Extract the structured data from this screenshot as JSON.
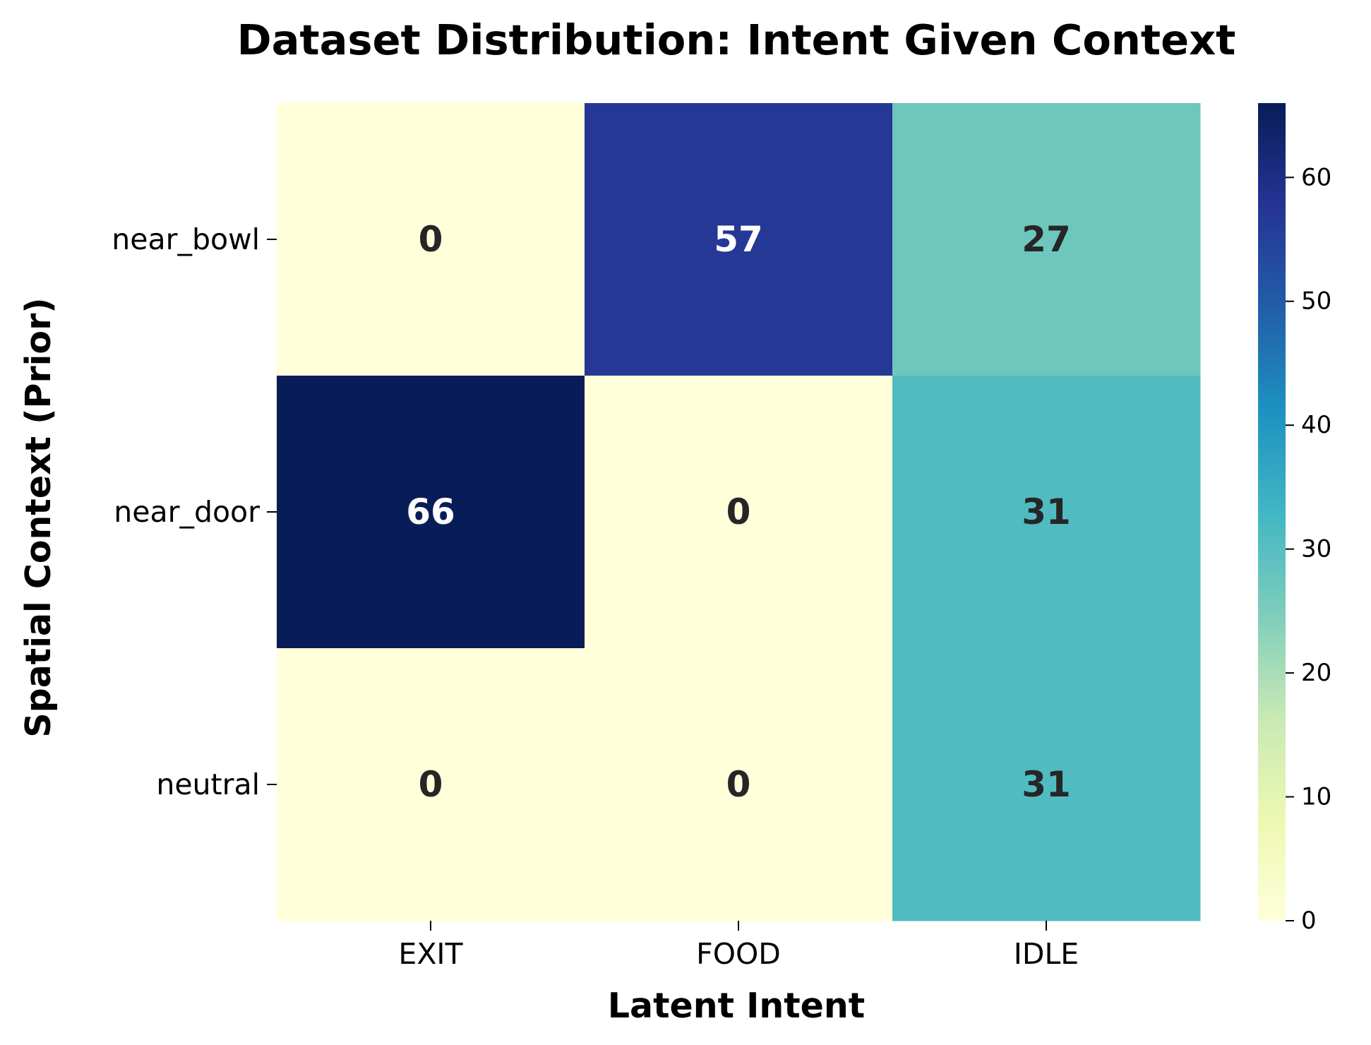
{
  "chart_data": {
    "type": "heatmap",
    "title": "Dataset Distribution: Intent Given Context",
    "xlabel": "Latent Intent",
    "ylabel": "Spatial Context (Prior)",
    "x_categories": [
      "EXIT",
      "FOOD",
      "IDLE"
    ],
    "y_categories": [
      "near_bowl",
      "near_door",
      "neutral"
    ],
    "values": [
      [
        0,
        57,
        27
      ],
      [
        66,
        0,
        31
      ],
      [
        0,
        0,
        31
      ]
    ],
    "colormap": "YlGnBu",
    "colorbar": {
      "min": 0,
      "max": 66,
      "ticks": [
        0,
        10,
        20,
        30,
        40,
        50,
        60
      ]
    },
    "annotations": true,
    "grid": false
  }
}
